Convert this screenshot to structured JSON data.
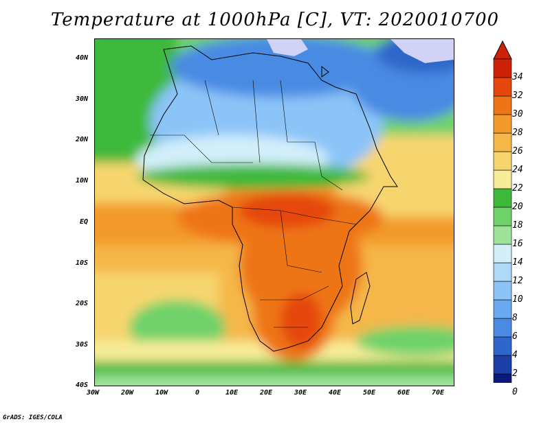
{
  "title": "Temperature at 1000hPa [C], VT: 2020010700",
  "footer": "GrADS: IGES/COLA",
  "lat_ticks": [
    "40N",
    "30N",
    "20N",
    "10N",
    "EQ",
    "10S",
    "20S",
    "30S",
    "40S"
  ],
  "lon_ticks": [
    "30W",
    "20W",
    "10W",
    "0",
    "10E",
    "20E",
    "30E",
    "40E",
    "50E",
    "60E",
    "70E"
  ],
  "colorbar": {
    "labels": [
      "0",
      "2",
      "4",
      "6",
      "8",
      "10",
      "12",
      "14",
      "16",
      "18",
      "20",
      "22",
      "24",
      "26",
      "28",
      "30",
      "32",
      "34"
    ],
    "colors": [
      "#0b1a7a",
      "#1d3fa8",
      "#2e66c9",
      "#4a8ae3",
      "#6aa9f0",
      "#8cc4f8",
      "#aedaf7",
      "#d2effa",
      "#9fe39a",
      "#6fd26a",
      "#3cb93b",
      "#f7ec98",
      "#f7d56e",
      "#f5b748",
      "#f29a2b",
      "#ee7418",
      "#e5470d",
      "#cc2208"
    ]
  }
}
